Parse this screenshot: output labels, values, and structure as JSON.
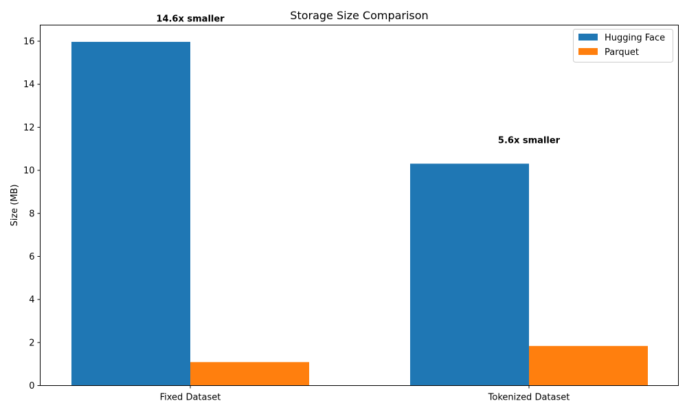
{
  "chart_data": {
    "type": "bar",
    "title": "Storage Size Comparison",
    "xlabel": "",
    "ylabel": "Size (MB)",
    "ylim": [
      0,
      16.75
    ],
    "yticks": [
      0,
      2,
      4,
      6,
      8,
      10,
      12,
      14,
      16
    ],
    "categories": [
      "Fixed Dataset",
      "Tokenized Dataset"
    ],
    "series": [
      {
        "name": "Hugging Face",
        "values": [
          15.97,
          10.31
        ],
        "color": "#1f77b4"
      },
      {
        "name": "Parquet",
        "values": [
          1.09,
          1.84
        ],
        "color": "#ff7f0e"
      }
    ],
    "annotations": [
      {
        "category": "Fixed Dataset",
        "text": "14.6x smaller",
        "y": 17.05
      },
      {
        "category": "Tokenized Dataset",
        "text": "5.6x smaller",
        "y": 11.41
      }
    ],
    "legend_position": "top-right",
    "grid": false
  }
}
